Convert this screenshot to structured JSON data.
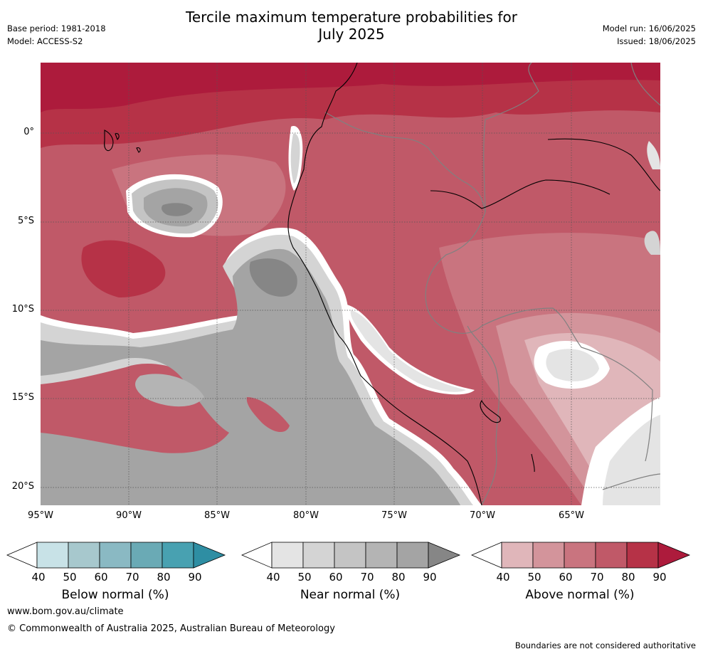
{
  "header": {
    "base_period": "Base period: 1981-2018",
    "model": "Model: ACCESS-S2",
    "title_line1": "Tercile maximum temperature probabilities for",
    "title_line2": "July 2025",
    "model_run": "Model run: 16/06/2025",
    "issued": "Issued: 18/06/2025"
  },
  "map": {
    "lat_labels": [
      "0°",
      "5°S",
      "10°S",
      "15°S",
      "20°S"
    ],
    "lon_labels": [
      "95°W",
      "90°W",
      "85°W",
      "80°W",
      "75°W",
      "70°W",
      "65°W"
    ]
  },
  "colorbars": [
    {
      "title": "Below normal (%)",
      "ticks": [
        "40",
        "50",
        "60",
        "70",
        "80",
        "90"
      ],
      "colors": [
        "#ffffff",
        "#c8e2e7",
        "#a7c8cd",
        "#8ab9c3",
        "#6aaab5",
        "#48a1b1",
        "#2e8ea3"
      ]
    },
    {
      "title": "Near normal (%)",
      "ticks": [
        "40",
        "50",
        "60",
        "70",
        "80",
        "90"
      ],
      "colors": [
        "#ffffff",
        "#e4e4e4",
        "#d4d4d4",
        "#c4c4c4",
        "#b4b4b4",
        "#a4a4a4",
        "#868686"
      ]
    },
    {
      "title": "Above normal (%)",
      "ticks": [
        "40",
        "50",
        "60",
        "70",
        "80",
        "90"
      ],
      "colors": [
        "#ffffff",
        "#e0b6ba",
        "#d3949b",
        "#c9747f",
        "#c05968",
        "#b63247",
        "#ad1b3c"
      ]
    }
  ],
  "footer": {
    "url": "www.bom.gov.au/climate",
    "copyright": "© Commonwealth of Australia 2025, Australian Bureau of Meteorology",
    "note": "Boundaries are not considered authoritative"
  }
}
